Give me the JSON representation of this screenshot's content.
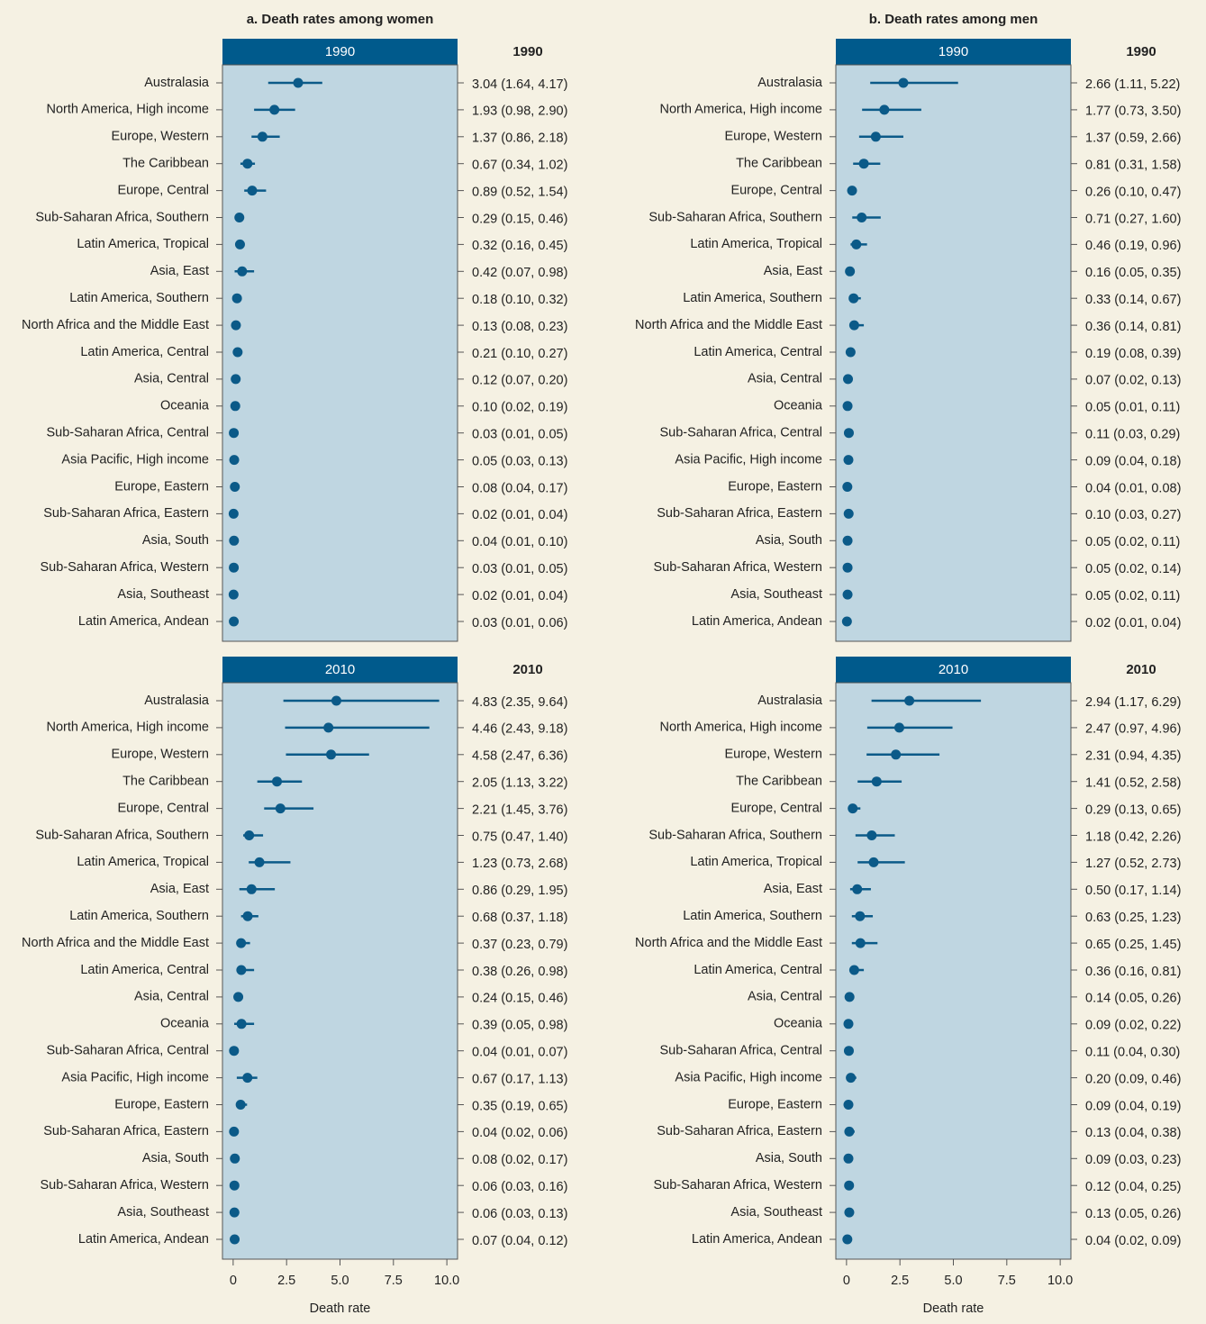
{
  "chart_data": [
    {
      "type": "forest",
      "title": "a. Death rates among women",
      "panel_label": "1990",
      "color": "#0b5a88",
      "categories": [
        "Australasia",
        "North America, High income",
        "Europe, Western",
        "The Caribbean",
        "Europe, Central",
        "Sub-Saharan Africa, Southern",
        "Latin America, Tropical",
        "Asia, East",
        "Latin America, Southern",
        "North Africa and the Middle East",
        "Latin America, Central",
        "Asia, Central",
        "Oceania",
        "Sub-Saharan Africa, Central",
        "Asia Pacific, High income",
        "Europe, Eastern",
        "Sub-Saharan Africa, Eastern",
        "Asia, South",
        "Sub-Saharan Africa, Western",
        "Asia, Southeast",
        "Latin America, Andean"
      ],
      "values": [
        3.04,
        1.93,
        1.37,
        0.67,
        0.89,
        0.29,
        0.32,
        0.42,
        0.18,
        0.13,
        0.21,
        0.12,
        0.1,
        0.03,
        0.05,
        0.08,
        0.02,
        0.04,
        0.03,
        0.02,
        0.03
      ],
      "lower": [
        1.64,
        0.98,
        0.86,
        0.34,
        0.52,
        0.15,
        0.16,
        0.07,
        0.1,
        0.08,
        0.1,
        0.07,
        0.02,
        0.01,
        0.03,
        0.04,
        0.01,
        0.01,
        0.01,
        0.01,
        0.01
      ],
      "upper": [
        4.17,
        2.9,
        2.18,
        1.02,
        1.54,
        0.46,
        0.45,
        0.98,
        0.32,
        0.23,
        0.27,
        0.2,
        0.19,
        0.05,
        0.13,
        0.17,
        0.04,
        0.1,
        0.05,
        0.04,
        0.06
      ],
      "value_labels": [
        "3.04 (1.64, 4.17)",
        "1.93 (0.98, 2.90)",
        "1.37 (0.86, 2.18)",
        "0.67 (0.34, 1.02)",
        "0.89 (0.52, 1.54)",
        "0.29 (0.15, 0.46)",
        "0.32 (0.16, 0.45)",
        "0.42 (0.07, 0.98)",
        "0.18 (0.10, 0.32)",
        "0.13 (0.08, 0.23)",
        "0.21 (0.10, 0.27)",
        "0.12 (0.07, 0.20)",
        "0.10 (0.02, 0.19)",
        "0.03 (0.01, 0.05)",
        "0.05 (0.03, 0.13)",
        "0.08 (0.04, 0.17)",
        "0.02 (0.01, 0.04)",
        "0.04 (0.01, 0.10)",
        "0.03 (0.01, 0.05)",
        "0.02 (0.01, 0.04)",
        "0.03 (0.01, 0.06)"
      ],
      "xlim": [
        -0.5,
        10.5
      ]
    },
    {
      "type": "forest",
      "title": "b. Death rates among men",
      "panel_label": "1990",
      "color": "#0b5a88",
      "categories": [
        "Australasia",
        "North America, High income",
        "Europe, Western",
        "The Caribbean",
        "Europe, Central",
        "Sub-Saharan Africa, Southern",
        "Latin America, Tropical",
        "Asia, East",
        "Latin America, Southern",
        "North Africa and the Middle East",
        "Latin America, Central",
        "Asia, Central",
        "Oceania",
        "Sub-Saharan Africa, Central",
        "Asia Pacific, High income",
        "Europe, Eastern",
        "Sub-Saharan Africa, Eastern",
        "Asia, South",
        "Sub-Saharan Africa, Western",
        "Asia, Southeast",
        "Latin America, Andean"
      ],
      "values": [
        2.66,
        1.77,
        1.37,
        0.81,
        0.26,
        0.71,
        0.46,
        0.16,
        0.33,
        0.36,
        0.19,
        0.07,
        0.05,
        0.11,
        0.09,
        0.04,
        0.1,
        0.05,
        0.05,
        0.05,
        0.02
      ],
      "lower": [
        1.11,
        0.73,
        0.59,
        0.31,
        0.1,
        0.27,
        0.19,
        0.05,
        0.14,
        0.14,
        0.08,
        0.02,
        0.01,
        0.03,
        0.04,
        0.01,
        0.03,
        0.02,
        0.02,
        0.02,
        0.01
      ],
      "upper": [
        5.22,
        3.5,
        2.66,
        1.58,
        0.47,
        1.6,
        0.96,
        0.35,
        0.67,
        0.81,
        0.39,
        0.13,
        0.11,
        0.29,
        0.18,
        0.08,
        0.27,
        0.11,
        0.14,
        0.11,
        0.04
      ],
      "value_labels": [
        "2.66 (1.11, 5.22)",
        "1.77 (0.73, 3.50)",
        "1.37 (0.59, 2.66)",
        "0.81 (0.31, 1.58)",
        "0.26 (0.10, 0.47)",
        "0.71 (0.27, 1.60)",
        "0.46 (0.19, 0.96)",
        "0.16 (0.05, 0.35)",
        "0.33 (0.14, 0.67)",
        "0.36 (0.14, 0.81)",
        "0.19 (0.08, 0.39)",
        "0.07 (0.02, 0.13)",
        "0.05 (0.01, 0.11)",
        "0.11 (0.03, 0.29)",
        "0.09 (0.04, 0.18)",
        "0.04 (0.01, 0.08)",
        "0.10 (0.03, 0.27)",
        "0.05 (0.02, 0.11)",
        "0.05 (0.02, 0.14)",
        "0.05 (0.02, 0.11)",
        "0.02 (0.01, 0.04)"
      ],
      "xlim": [
        -0.5,
        10.5
      ]
    },
    {
      "type": "forest",
      "panel_label": "2010",
      "color": "#0b5a88",
      "xlabel": "Death rate",
      "categories": [
        "Australasia",
        "North America, High income",
        "Europe, Western",
        "The Caribbean",
        "Europe, Central",
        "Sub-Saharan Africa, Southern",
        "Latin America, Tropical",
        "Asia, East",
        "Latin America, Southern",
        "North Africa and the Middle East",
        "Latin America, Central",
        "Asia, Central",
        "Oceania",
        "Sub-Saharan Africa, Central",
        "Asia Pacific, High income",
        "Europe, Eastern",
        "Sub-Saharan Africa, Eastern",
        "Asia, South",
        "Sub-Saharan Africa, Western",
        "Asia, Southeast",
        "Latin America, Andean"
      ],
      "values": [
        4.83,
        4.46,
        4.58,
        2.05,
        2.21,
        0.75,
        1.23,
        0.86,
        0.68,
        0.37,
        0.38,
        0.24,
        0.39,
        0.04,
        0.67,
        0.35,
        0.04,
        0.08,
        0.06,
        0.06,
        0.07
      ],
      "lower": [
        2.35,
        2.43,
        2.47,
        1.13,
        1.45,
        0.47,
        0.73,
        0.29,
        0.37,
        0.23,
        0.26,
        0.15,
        0.05,
        0.01,
        0.17,
        0.19,
        0.02,
        0.02,
        0.03,
        0.03,
        0.04
      ],
      "upper": [
        9.64,
        9.18,
        6.36,
        3.22,
        3.76,
        1.4,
        2.68,
        1.95,
        1.18,
        0.79,
        0.98,
        0.46,
        0.98,
        0.07,
        1.13,
        0.65,
        0.06,
        0.17,
        0.16,
        0.13,
        0.12
      ],
      "value_labels": [
        "4.83 (2.35, 9.64)",
        "4.46 (2.43, 9.18)",
        "4.58 (2.47, 6.36)",
        "2.05 (1.13, 3.22)",
        "2.21 (1.45, 3.76)",
        "0.75 (0.47, 1.40)",
        "1.23 (0.73, 2.68)",
        "0.86 (0.29, 1.95)",
        "0.68 (0.37, 1.18)",
        "0.37 (0.23, 0.79)",
        "0.38 (0.26, 0.98)",
        "0.24 (0.15, 0.46)",
        "0.39 (0.05, 0.98)",
        "0.04 (0.01, 0.07)",
        "0.67 (0.17, 1.13)",
        "0.35 (0.19, 0.65)",
        "0.04 (0.02, 0.06)",
        "0.08 (0.02, 0.17)",
        "0.06 (0.03, 0.16)",
        "0.06 (0.03, 0.13)",
        "0.07 (0.04, 0.12)"
      ],
      "xlim": [
        -0.5,
        10.5
      ],
      "xticks": [
        0,
        2.5,
        {
          "value": 5,
          "label": "5.0"
        },
        7.5,
        {
          "value": 10,
          "label": "10.0"
        }
      ]
    },
    {
      "type": "forest",
      "panel_label": "2010",
      "color": "#0b5a88",
      "xlabel": "Death rate",
      "categories": [
        "Australasia",
        "North America, High income",
        "Europe, Western",
        "The Caribbean",
        "Europe, Central",
        "Sub-Saharan Africa, Southern",
        "Latin America, Tropical",
        "Asia, East",
        "Latin America, Southern",
        "North Africa and the Middle East",
        "Latin America, Central",
        "Asia, Central",
        "Oceania",
        "Sub-Saharan Africa, Central",
        "Asia Pacific, High income",
        "Europe, Eastern",
        "Sub-Saharan Africa, Eastern",
        "Asia, South",
        "Sub-Saharan Africa, Western",
        "Asia, Southeast",
        "Latin America, Andean"
      ],
      "values": [
        2.94,
        2.47,
        2.31,
        1.41,
        0.29,
        1.18,
        1.27,
        0.5,
        0.63,
        0.65,
        0.36,
        0.14,
        0.09,
        0.11,
        0.2,
        0.09,
        0.13,
        0.09,
        0.12,
        0.13,
        0.04
      ],
      "lower": [
        1.17,
        0.97,
        0.94,
        0.52,
        0.13,
        0.42,
        0.52,
        0.17,
        0.25,
        0.25,
        0.16,
        0.05,
        0.02,
        0.04,
        0.09,
        0.04,
        0.04,
        0.03,
        0.04,
        0.05,
        0.02
      ],
      "upper": [
        6.29,
        4.96,
        4.35,
        2.58,
        0.65,
        2.26,
        2.73,
        1.14,
        1.23,
        1.45,
        0.81,
        0.26,
        0.22,
        0.3,
        0.46,
        0.19,
        0.38,
        0.23,
        0.25,
        0.26,
        0.09
      ],
      "value_labels": [
        "2.94 (1.17, 6.29)",
        "2.47 (0.97, 4.96)",
        "2.31 (0.94, 4.35)",
        "1.41 (0.52, 2.58)",
        "0.29 (0.13, 0.65)",
        "1.18 (0.42, 2.26)",
        "1.27 (0.52, 2.73)",
        "0.50 (0.17, 1.14)",
        "0.63 (0.25, 1.23)",
        "0.65 (0.25, 1.45)",
        "0.36 (0.16, 0.81)",
        "0.14 (0.05, 0.26)",
        "0.09 (0.02, 0.22)",
        "0.11 (0.04, 0.30)",
        "0.20 (0.09, 0.46)",
        "0.09 (0.04, 0.19)",
        "0.13 (0.04, 0.38)",
        "0.09 (0.03, 0.23)",
        "0.12 (0.04, 0.25)",
        "0.13 (0.05, 0.26)",
        "0.04 (0.02, 0.09)"
      ],
      "xlim": [
        -0.5,
        10.5
      ],
      "xticks": [
        0,
        2.5,
        {
          "value": 5,
          "label": "5.0"
        },
        7.5,
        {
          "value": 10,
          "label": "10.0"
        }
      ]
    }
  ]
}
